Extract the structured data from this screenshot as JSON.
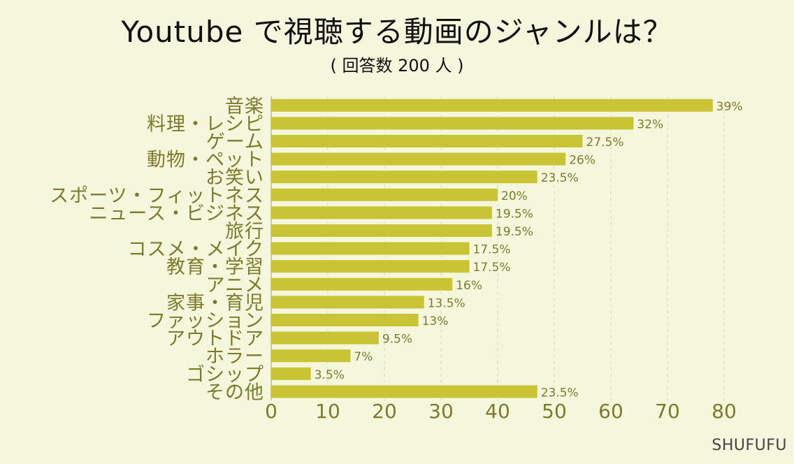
{
  "chart_data": {
    "type": "bar",
    "orientation": "horizontal",
    "title": "Youtube で視聴する動画のジャンルは？",
    "subtitle": "( 回答数 200 人 )",
    "categories": [
      "音楽",
      "料理・レシピ",
      "ゲーム",
      "動物・ペット",
      "お笑い",
      "スポーツ・フィットネス",
      "ニュース・ビジネス",
      "旅行",
      "コスメ・メイク",
      "教育・学習",
      "アニメ",
      "家事・育児",
      "ファッション",
      "アウトドア",
      "ホラー",
      "ゴシップ",
      "その他"
    ],
    "values": [
      78,
      64,
      55,
      52,
      47,
      40,
      39,
      39,
      35,
      35,
      32,
      27,
      26,
      19,
      14,
      7,
      47
    ],
    "data_labels": [
      "39%",
      "32%",
      "27.5%",
      "26%",
      "23.5%",
      "20%",
      "19.5%",
      "19.5%",
      "17.5%",
      "17.5%",
      "16%",
      "13.5%",
      "13%",
      "9.5%",
      "7%",
      "3.5%",
      "23.5%"
    ],
    "xlim": [
      0,
      80
    ],
    "xticks": [
      "0",
      "10",
      "20",
      "30",
      "40",
      "50",
      "60",
      "70",
      "80"
    ],
    "grid": "vertical-dashed",
    "bar_color": "#c9c435",
    "label_color": "#7d7a2c",
    "xlabel": "",
    "ylabel": ""
  },
  "watermark": "SHUFUFU"
}
